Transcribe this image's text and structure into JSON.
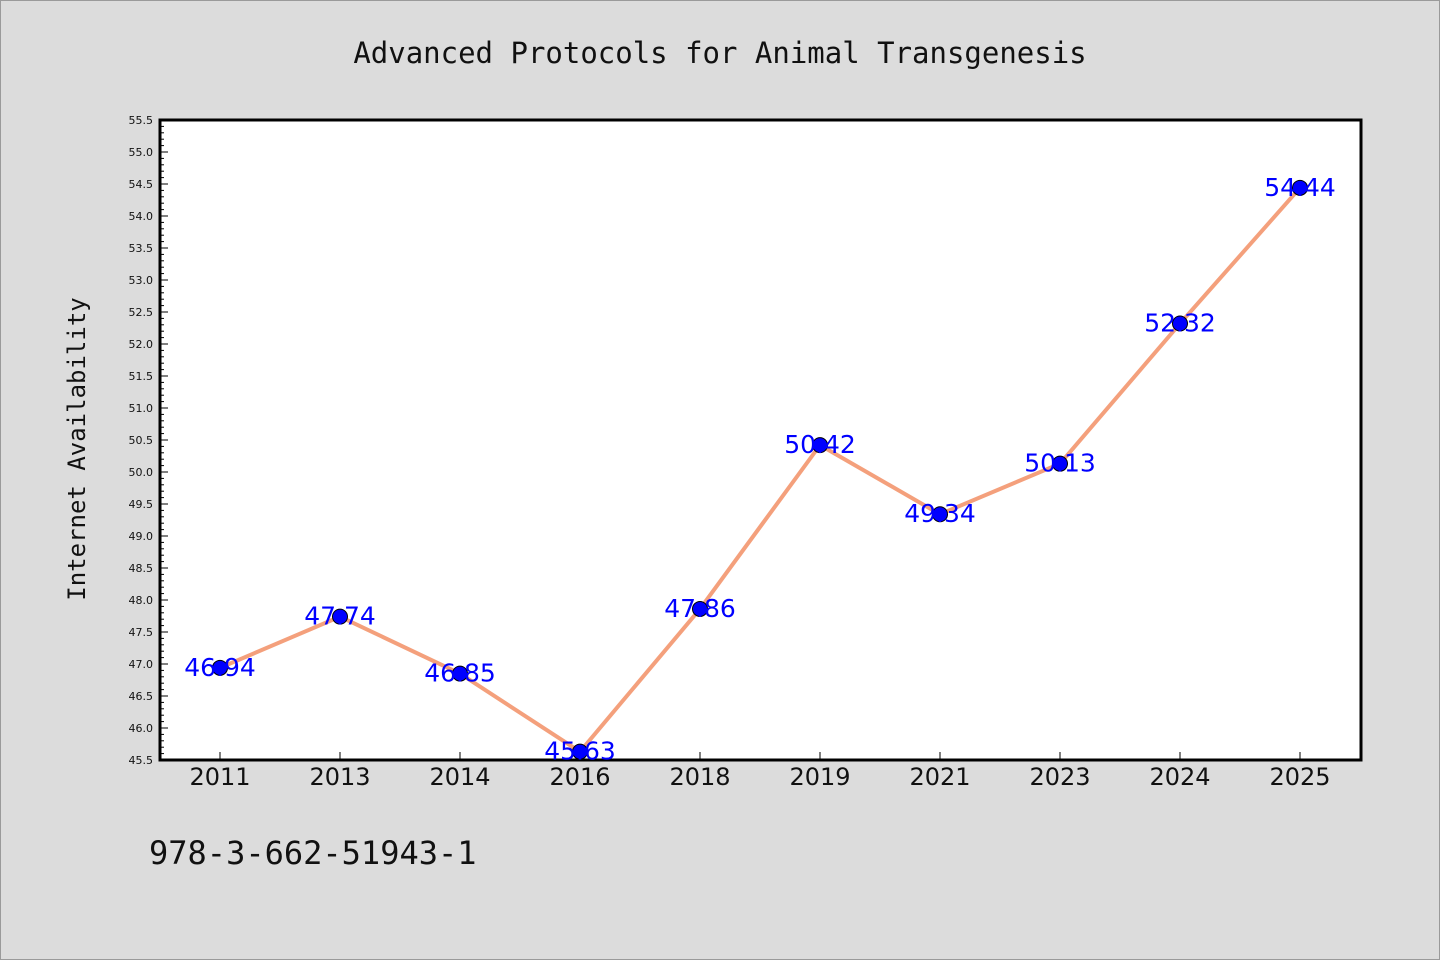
{
  "chart_data": {
    "type": "line",
    "title": "Advanced Protocols for Animal Transgenesis",
    "xlabel": "",
    "ylabel": "Internet Availability",
    "categories": [
      "2011",
      "2013",
      "2014",
      "2016",
      "2018",
      "2019",
      "2021",
      "2023",
      "2024",
      "2025"
    ],
    "values": [
      46.94,
      47.74,
      46.85,
      45.63,
      47.86,
      50.42,
      49.34,
      50.13,
      52.32,
      54.44
    ],
    "data_labels": [
      "46.94",
      "47.74",
      "46.85",
      "45.63",
      "47.86",
      "50.42",
      "49.34",
      "50.13",
      "52.32",
      "54.44"
    ],
    "ylim": [
      45.5,
      55.5
    ],
    "yticks": [
      "45.5",
      "46.0",
      "46.5",
      "47.0",
      "47.5",
      "48.0",
      "48.5",
      "49.0",
      "49.5",
      "50.0",
      "50.5",
      "51.0",
      "51.5",
      "52.0",
      "52.5",
      "53.0",
      "53.5",
      "54.0",
      "54.5",
      "55.0",
      "55.5"
    ],
    "grid": false,
    "line_color": "#f4a07c",
    "marker_color": "#0000ff",
    "label_color": "#0000ff"
  },
  "footer": {
    "isbn": "978-3-662-51943-1"
  }
}
